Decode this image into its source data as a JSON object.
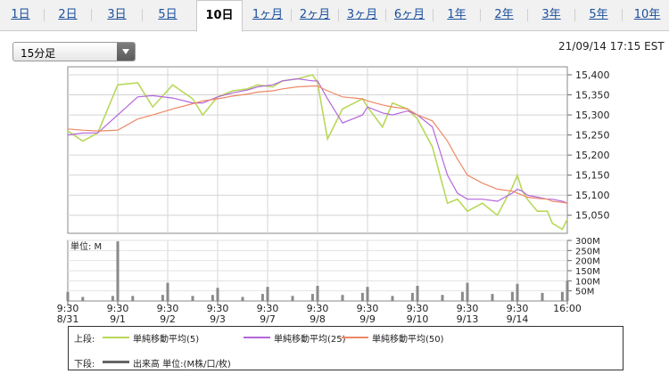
{
  "tabs": [
    {
      "label": "1日",
      "active": false
    },
    {
      "label": "2日",
      "active": false
    },
    {
      "label": "3日",
      "active": false
    },
    {
      "label": "5日",
      "active": false
    },
    {
      "label": "10日",
      "active": true
    },
    {
      "label": "1ヶ月",
      "active": false
    },
    {
      "label": "2ヶ月",
      "active": false
    },
    {
      "label": "3ヶ月",
      "active": false
    },
    {
      "label": "6ヶ月",
      "active": false
    },
    {
      "label": "1年",
      "active": false
    },
    {
      "label": "2年",
      "active": false
    },
    {
      "label": "3年",
      "active": false
    },
    {
      "label": "5年",
      "active": false
    },
    {
      "label": "10年",
      "active": false
    }
  ],
  "period_select": {
    "value": "15分足"
  },
  "timestamp": "21/09/14 17:15 EST",
  "chart_data": {
    "type": "line",
    "title": "",
    "price": {
      "yticks": [
        15050,
        15100,
        15150,
        15200,
        15250,
        15300,
        15350,
        15400
      ],
      "ytick_labels": [
        "15,050",
        "15,100",
        "15,150",
        "15,200",
        "15,250",
        "15,300",
        "15,350",
        "15,400"
      ],
      "ylim": [
        15005,
        15420
      ],
      "x": [
        0,
        0.3,
        0.6,
        1,
        1.4,
        1.7,
        2.1,
        2.5,
        2.7,
        3,
        3.3,
        3.6,
        3.8,
        4.1,
        4.3,
        4.6,
        4.9,
        5,
        5.2,
        5.5,
        5.9,
        6,
        6.3,
        6.5,
        6.8,
        7,
        7.3,
        7.6,
        7.8,
        8,
        8.3,
        8.6,
        8.9,
        9,
        9.1,
        9.2,
        9.4,
        9.6,
        9.7,
        9.9,
        10
      ],
      "series": [
        {
          "name": "単純移動平均(5)",
          "color": "#b8d85a",
          "values": [
            15260,
            15235,
            15255,
            15375,
            15380,
            15320,
            15375,
            15340,
            15300,
            15345,
            15360,
            15365,
            15375,
            15370,
            15385,
            15390,
            15400,
            15380,
            15240,
            15315,
            15340,
            15320,
            15270,
            15330,
            15315,
            15290,
            15220,
            15080,
            15090,
            15060,
            15080,
            15050,
            15120,
            15150,
            15110,
            15090,
            15060,
            15060,
            15030,
            15015,
            15040
          ]
        },
        {
          "name": "単純移動平均(25)",
          "color": "#b466dc",
          "values": [
            15250,
            15255,
            15255,
            15300,
            15345,
            15348,
            15342,
            15330,
            15330,
            15345,
            15355,
            15362,
            15370,
            15375,
            15385,
            15390,
            15385,
            15385,
            15340,
            15280,
            15300,
            15320,
            15305,
            15300,
            15310,
            15300,
            15270,
            15150,
            15105,
            15090,
            15090,
            15085,
            15105,
            15115,
            15110,
            15100,
            15095,
            15090,
            15090,
            15085,
            15080
          ]
        },
        {
          "name": "単純移動平均(50)",
          "color": "#ee8866",
          "values": [
            15265,
            15262,
            15260,
            15262,
            15290,
            15300,
            15315,
            15328,
            15335,
            15340,
            15347,
            15352,
            15357,
            15360,
            15365,
            15370,
            15372,
            15372,
            15360,
            15345,
            15340,
            15335,
            15325,
            15320,
            15315,
            15300,
            15285,
            15235,
            15190,
            15150,
            15130,
            15115,
            15110,
            15105,
            15100,
            15095,
            15092,
            15090,
            15085,
            15082,
            15080
          ]
        }
      ]
    },
    "volume": {
      "label": "単位: M",
      "yticks": [
        50,
        100,
        150,
        200,
        250,
        300
      ],
      "ytick_labels": [
        "50M",
        "100M",
        "150M",
        "200M",
        "250M",
        "300M"
      ],
      "ylim": [
        0,
        300
      ],
      "x": [
        0,
        0.3,
        0.9,
        1,
        1.3,
        1.9,
        2,
        2.5,
        2.9,
        3,
        3.5,
        3.9,
        4,
        4.5,
        4.9,
        5,
        5.5,
        5.9,
        6,
        6.5,
        6.9,
        7,
        7.5,
        7.9,
        8,
        8.5,
        8.9,
        9,
        9.5,
        9.9,
        10
      ],
      "values": [
        45,
        20,
        25,
        295,
        25,
        30,
        90,
        25,
        30,
        65,
        20,
        35,
        70,
        25,
        35,
        75,
        30,
        40,
        70,
        25,
        40,
        75,
        30,
        45,
        90,
        35,
        45,
        85,
        40,
        45,
        100
      ]
    },
    "session_labels": [
      "9:30",
      "9:30",
      "9:30",
      "9:30",
      "9:30",
      "9:30",
      "9:30",
      "9:30",
      "9:30",
      "9:30",
      "16:00"
    ],
    "date_labels": [
      "8/31",
      "9/1",
      "9/2",
      "9/3",
      "9/7",
      "9/8",
      "9/9",
      "9/10",
      "9/13",
      "9/14",
      ""
    ],
    "grid": true
  },
  "legend": {
    "upper_caption": "上段:",
    "lower_caption": "下段:",
    "items": [
      {
        "label": "単純移動平均(5)",
        "color": "#b8d85a"
      },
      {
        "label": "単純移動平均(25)",
        "color": "#b466dc"
      },
      {
        "label": "単純移動平均(50)",
        "color": "#ee8866"
      }
    ],
    "volume_label": "出来高 単位:(M株/口/枚)",
    "volume_color": "#666666"
  }
}
